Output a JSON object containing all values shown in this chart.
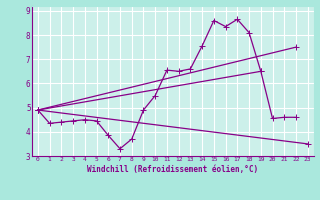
{
  "xlabel": "Windchill (Refroidissement éolien,°C)",
  "background_color": "#aae8dd",
  "plot_bg_color": "#ccf0ea",
  "line_color": "#880088",
  "grid_color": "#ffffff",
  "xlim": [
    -0.5,
    23.5
  ],
  "ylim": [
    3,
    9.2
  ],
  "xticks": [
    0,
    1,
    2,
    3,
    4,
    5,
    6,
    7,
    8,
    9,
    10,
    11,
    12,
    13,
    14,
    15,
    16,
    17,
    18,
    19,
    20,
    21,
    22,
    23
  ],
  "yticks": [
    3,
    4,
    5,
    6,
    7,
    8,
    9
  ],
  "main_line": [
    [
      0,
      4.9
    ],
    [
      1,
      4.35
    ],
    [
      2,
      4.4
    ],
    [
      3,
      4.45
    ],
    [
      4,
      4.5
    ],
    [
      5,
      4.45
    ],
    [
      6,
      3.85
    ],
    [
      7,
      3.3
    ],
    [
      8,
      3.7
    ],
    [
      9,
      4.9
    ],
    [
      10,
      5.5
    ],
    [
      11,
      6.55
    ],
    [
      12,
      6.5
    ],
    [
      13,
      6.6
    ],
    [
      14,
      7.55
    ],
    [
      15,
      8.6
    ],
    [
      16,
      8.35
    ],
    [
      17,
      8.65
    ],
    [
      18,
      8.1
    ],
    [
      19,
      6.5
    ],
    [
      20,
      4.55
    ],
    [
      21,
      4.6
    ],
    [
      22,
      4.6
    ]
  ],
  "straight_lines": [
    [
      [
        0,
        4.9
      ],
      [
        22,
        7.5
      ]
    ],
    [
      [
        0,
        4.9
      ],
      [
        19,
        6.5
      ]
    ],
    [
      [
        0,
        4.9
      ],
      [
        23,
        3.5
      ]
    ]
  ]
}
